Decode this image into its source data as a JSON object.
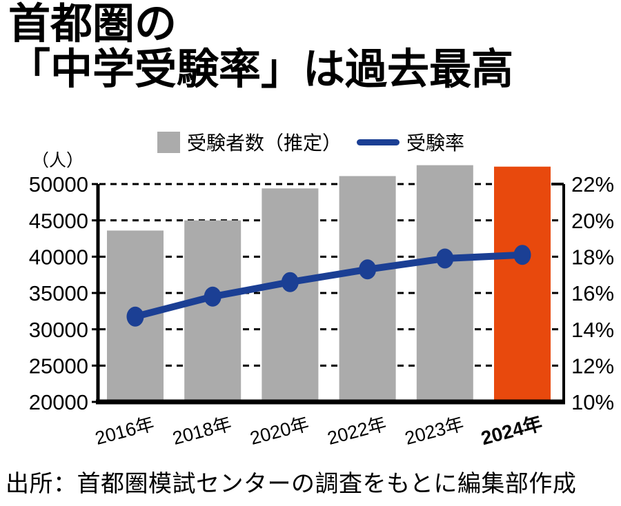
{
  "title": {
    "line1": "首都圏の",
    "line2": "「中学受験率」は過去最高"
  },
  "legend": {
    "bar_label": "受験者数（推定）",
    "line_label": "受験率"
  },
  "unit_label": "（人）",
  "source": "出所：首都圏模試センターの調査をもとに編集部作成",
  "colors": {
    "bar": "#ababab",
    "bar_highlight": "#e8490d",
    "line": "#1b3f94",
    "axis": "#000000",
    "background": "#ffffff"
  },
  "chart_data": {
    "type": "combo-bar-line",
    "categories": [
      "2016年",
      "2018年",
      "2020年",
      "2022年",
      "2023年",
      "2024年"
    ],
    "series": [
      {
        "name": "受験者数（推定）",
        "type": "bar",
        "axis": "left",
        "values": [
          43600,
          45000,
          49400,
          51100,
          52600,
          52400
        ]
      },
      {
        "name": "受験率",
        "type": "line",
        "axis": "right",
        "values": [
          14.7,
          15.8,
          16.6,
          17.3,
          17.9,
          18.1
        ]
      }
    ],
    "highlight_index": 5,
    "left_axis": {
      "unit": "（人）",
      "ticks": [
        "50000",
        "45000",
        "40000",
        "35000",
        "30000",
        "25000",
        "20000"
      ],
      "min": 20000,
      "max": 50000
    },
    "right_axis": {
      "ticks": [
        "22%",
        "20%",
        "18%",
        "16%",
        "14%",
        "12%",
        "10%"
      ],
      "min": 10,
      "max": 22
    },
    "grid": "dashed-horizontal",
    "legend_position": "top"
  }
}
